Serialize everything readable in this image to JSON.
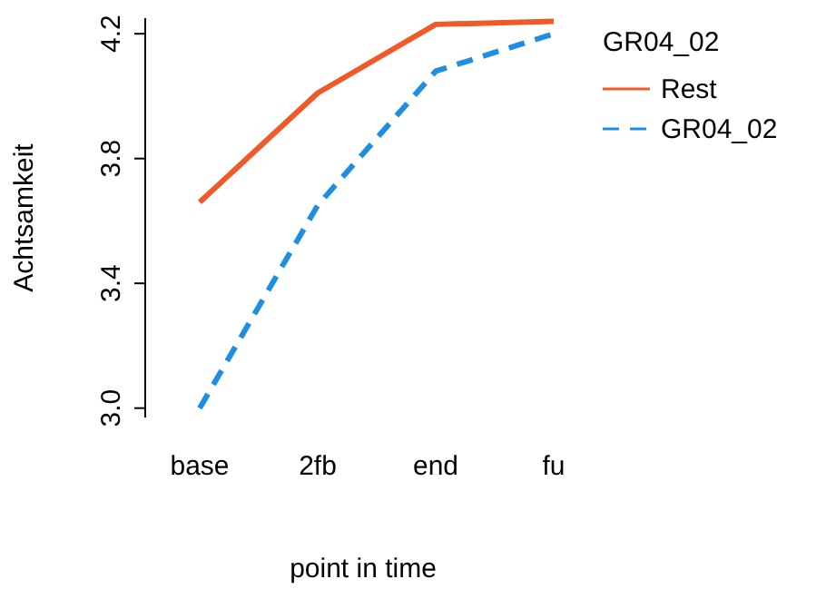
{
  "chart_data": {
    "type": "line",
    "xlabel": "point in time",
    "ylabel": "Achtsamkeit",
    "legend_title": "GR04_02",
    "legend": "right",
    "categories": [
      "base",
      "2fb",
      "end",
      "fu"
    ],
    "series": [
      {
        "name": "Rest",
        "color": "#f05a28",
        "line_style": "solid",
        "values": [
          3.66,
          4.01,
          4.23,
          4.24
        ]
      },
      {
        "name": "GR04_02",
        "color": "#1e8fe0",
        "line_style": "dashed",
        "values": [
          3.0,
          3.65,
          4.08,
          4.2
        ]
      }
    ],
    "ylim": [
      2.97,
      4.25
    ],
    "yticks": [
      {
        "value": 3.0,
        "label": "3.0"
      },
      {
        "value": 3.4,
        "label": "3.4"
      },
      {
        "value": 3.8,
        "label": "3.8"
      },
      {
        "value": 4.2,
        "label": "4.2"
      }
    ],
    "grid": false
  }
}
